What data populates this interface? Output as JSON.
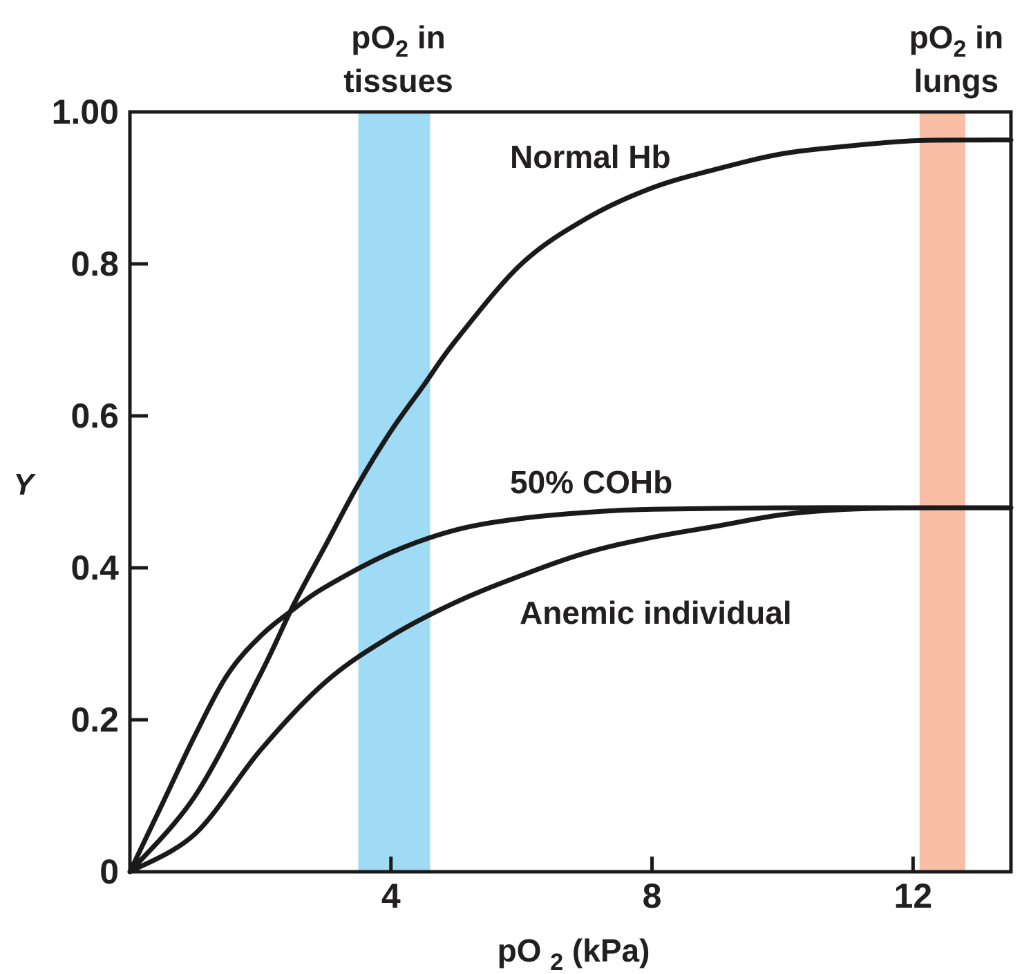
{
  "chart_data": {
    "type": "line",
    "xlabel": "pO2 (kPa)",
    "ylabel": "Y",
    "xlim": [
      0,
      13.5
    ],
    "ylim": [
      0,
      1.0
    ],
    "x_ticks": [
      {
        "value": 4,
        "label": "4"
      },
      {
        "value": 8,
        "label": "8"
      },
      {
        "value": 12,
        "label": "12"
      }
    ],
    "y_ticks": [
      {
        "value": 0,
        "label": "0"
      },
      {
        "value": 0.2,
        "label": "0.2"
      },
      {
        "value": 0.4,
        "label": "0.4"
      },
      {
        "value": 0.6,
        "label": "0.6"
      },
      {
        "value": 0.8,
        "label": "0.8"
      },
      {
        "value": 1.0,
        "label": "1.00"
      }
    ],
    "bands": [
      {
        "label_line1": "pO",
        "label_sub": "2",
        "label_tail": " in",
        "label_line2": "tissues",
        "x_range": [
          3.5,
          4.6
        ],
        "color": "#a0dbf6"
      },
      {
        "label_line1": "pO",
        "label_sub": "2",
        "label_tail": " in",
        "label_line2": "lungs",
        "x_range": [
          12.1,
          12.8
        ],
        "color": "#f8bea6"
      }
    ],
    "series": [
      {
        "name": "Normal Hb",
        "x": [
          0,
          1,
          2,
          2.5,
          3,
          3.5,
          4,
          4.5,
          5,
          6,
          7,
          8,
          9,
          10,
          11,
          12,
          13,
          13.5
        ],
        "y": [
          0,
          0.1,
          0.26,
          0.35,
          0.43,
          0.51,
          0.58,
          0.64,
          0.7,
          0.8,
          0.86,
          0.9,
          0.925,
          0.945,
          0.955,
          0.962,
          0.963,
          0.963
        ]
      },
      {
        "name": "50% COHb",
        "x": [
          0,
          0.5,
          1,
          1.5,
          2,
          2.5,
          3,
          4,
          5,
          6,
          7,
          8,
          10,
          12,
          13.5
        ],
        "y": [
          0,
          0.09,
          0.18,
          0.26,
          0.31,
          0.345,
          0.375,
          0.42,
          0.45,
          0.465,
          0.473,
          0.477,
          0.479,
          0.479,
          0.479
        ]
      },
      {
        "name": "Anemic individual",
        "x": [
          0,
          1,
          2,
          3,
          4,
          5,
          6,
          7,
          8,
          9,
          10,
          11,
          12,
          13.5
        ],
        "y": [
          0,
          0.05,
          0.16,
          0.25,
          0.31,
          0.355,
          0.39,
          0.42,
          0.44,
          0.455,
          0.47,
          0.477,
          0.479,
          0.479
        ]
      }
    ],
    "annotations": [
      {
        "text": "Normal Hb",
        "series": "Normal Hb"
      },
      {
        "text": "50% COHb",
        "series": "50% COHb"
      },
      {
        "text": "Anemic individual",
        "series": "Anemic individual"
      }
    ],
    "grid": false
  }
}
